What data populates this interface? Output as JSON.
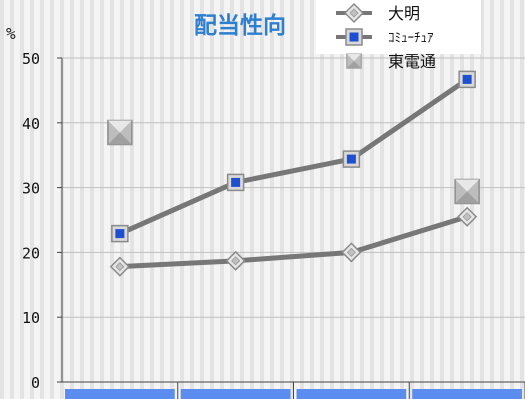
{
  "chart_data": {
    "type": "line",
    "title": "配当性向",
    "ylabel": "%",
    "ylim": [
      0,
      50
    ],
    "yticks": [
      0,
      10,
      20,
      30,
      40,
      50
    ],
    "grid": true,
    "legend_position": "top-right",
    "categories": [
      "",
      "",
      "",
      ""
    ],
    "series": [
      {
        "name": "大明",
        "marker": "diamond",
        "values": [
          17.8,
          18.7,
          20.0,
          25.5
        ],
        "color": "#777777",
        "marker_color": "#c0c0c0"
      },
      {
        "name": "ｺﾐｭｰﾁｭｱ",
        "marker": "square",
        "values": [
          22.9,
          30.8,
          34.4,
          46.7
        ],
        "color": "#777777",
        "marker_color": "#1f4fd1"
      },
      {
        "name": "東電通",
        "marker": "big-square",
        "line": false,
        "values": [
          38.5,
          null,
          null,
          29.4
        ],
        "color": "#999999",
        "marker_color": "#bdbdbd"
      }
    ],
    "colors": {
      "title": "#2f7fd1",
      "grid": "#bfbfbf",
      "axis": "#444444",
      "band": "#5b8cf0"
    }
  }
}
